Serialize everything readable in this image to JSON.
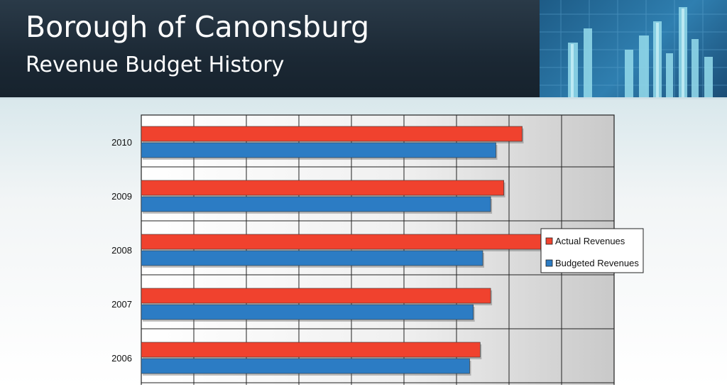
{
  "header": {
    "title": "Borough of Canonsburg",
    "subtitle": "Revenue Budget History"
  },
  "chart_data": {
    "type": "bar",
    "orientation": "horizontal",
    "title": "",
    "categories": [
      "2010",
      "2009",
      "2008",
      "2007",
      "2006"
    ],
    "series": [
      {
        "name": "Actual Revenues",
        "color": "#f0422e",
        "values": [
          7.25,
          6.9,
          7.8,
          6.65,
          6.45
        ]
      },
      {
        "name": "Budgeted Revenues",
        "color": "#2c7cc4",
        "values": [
          6.75,
          6.65,
          6.5,
          6.32,
          6.25
        ]
      }
    ],
    "xlim": [
      0,
      9
    ],
    "x_tick_labels_visible": false,
    "grid": true,
    "legend": "right"
  }
}
